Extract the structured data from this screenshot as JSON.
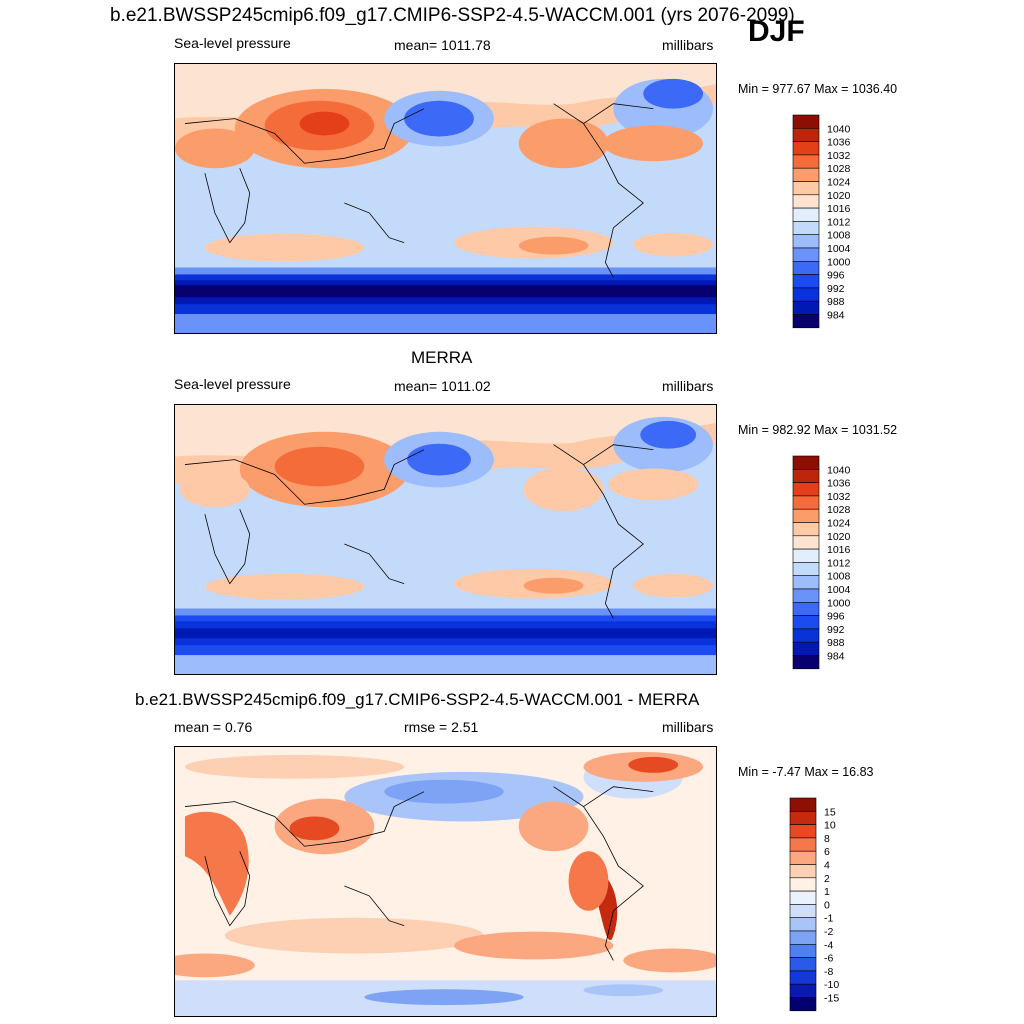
{
  "header": {
    "title": "b.e21.BWSSP245cmip6.f09_g17.CMIP6-SSP2-4.5-WACCM.001 (yrs 2076-2099)",
    "season": "DJF"
  },
  "colors": {
    "levels": [
      "#08006e",
      "#0018b4",
      "#0a32d9",
      "#1c4bf2",
      "#3c69f5",
      "#6a93fa",
      "#9cbcfb",
      "#c4dafb",
      "#e2eefc",
      "#fde4d2",
      "#fdc9a6",
      "#fb9c6b",
      "#f56c3b",
      "#e3401a",
      "#bd260b",
      "#8c0f04"
    ],
    "diff_levels": [
      "#050072",
      "#0a1ab0",
      "#1439d6",
      "#2c5ae8",
      "#4f7ff0",
      "#7ea3f5",
      "#a9c4f8",
      "#cfdffb",
      "#ecf2fd",
      "#fff1e6",
      "#fdd0b4",
      "#fba780",
      "#f5774a",
      "#e64a22",
      "#c42a0d",
      "#8e1004"
    ]
  },
  "panel1": {
    "variable": "Sea-level pressure",
    "mean_text": "mean= 1011.78",
    "units": "millibars",
    "minmax": "Min = 977.67 Max = 1036.40",
    "map_name": "model-slp-map"
  },
  "panel2": {
    "title": "MERRA",
    "variable": "Sea-level pressure",
    "mean_text": "mean= 1011.02",
    "units": "millibars",
    "minmax": "Min = 982.92 Max = 1031.52"
  },
  "panel3": {
    "title": "b.e21.BWSSP245cmip6.f09_g17.CMIP6-SSP2-4.5-WACCM.001 - MERRA",
    "mean_text": "mean =   0.76",
    "rmse_text": "rmse =   2.51",
    "units": "millibars",
    "minmax": "Min =  -7.47 Max =  16.83"
  },
  "chart_data": [
    {
      "type": "heatmap",
      "title": "b.e21.BWSSP245cmip6.f09_g17.CMIP6-SSP2-4.5-WACCM.001 (yrs 2076-2099)",
      "variable": "Sea-level pressure",
      "units": "millibars",
      "mean": 1011.78,
      "min": 977.67,
      "max": 1036.4,
      "colorbar_ticks": [
        "1040",
        "1036",
        "1032",
        "1028",
        "1024",
        "1020",
        "1016",
        "1012",
        "1008",
        "1004",
        "1000",
        "996",
        "992",
        "988",
        "984"
      ]
    },
    {
      "type": "heatmap",
      "title": "MERRA",
      "variable": "Sea-level pressure",
      "units": "millibars",
      "mean": 1011.02,
      "min": 982.92,
      "max": 1031.52,
      "colorbar_ticks": [
        "1040",
        "1036",
        "1032",
        "1028",
        "1024",
        "1020",
        "1016",
        "1012",
        "1008",
        "1004",
        "1000",
        "996",
        "992",
        "988",
        "984"
      ]
    },
    {
      "type": "heatmap",
      "title": "b.e21.BWSSP245cmip6.f09_g17.CMIP6-SSP2-4.5-WACCM.001 - MERRA",
      "units": "millibars",
      "mean": 0.76,
      "rmse": 2.51,
      "min": -7.47,
      "max": 16.83,
      "colorbar_ticks": [
        "15",
        "10",
        "8",
        "6",
        "4",
        "2",
        "1",
        "0",
        "-1",
        "-2",
        "-4",
        "-6",
        "-8",
        "-10",
        "-15"
      ]
    }
  ]
}
